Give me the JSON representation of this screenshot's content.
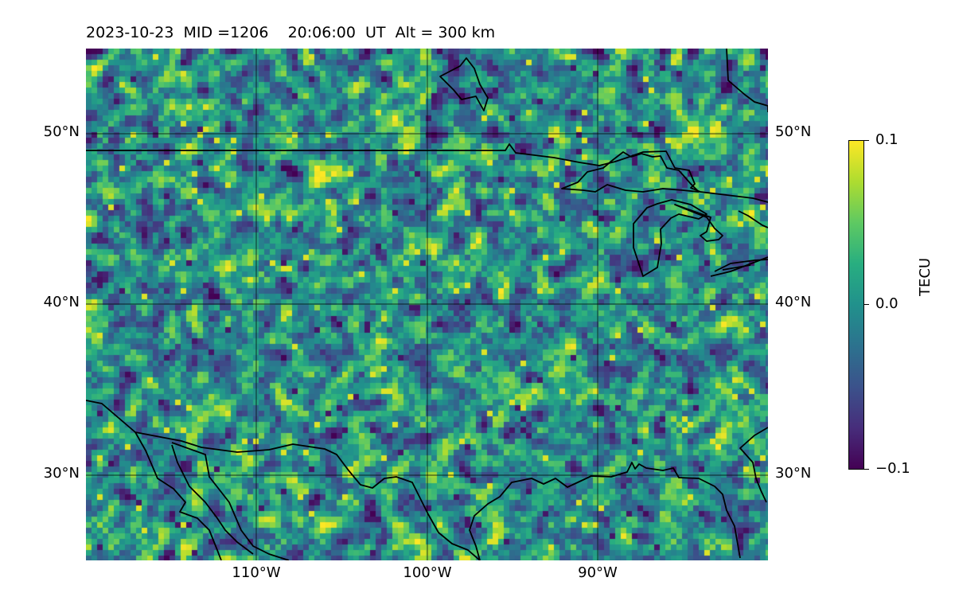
{
  "header": {
    "title": "2023-10-23  MID =1206    20:06:00  UT  Alt = 300 km"
  },
  "map": {
    "lat_ticks": [
      "50°N",
      "40°N",
      "30°N"
    ],
    "lon_ticks": [
      "110°W",
      "100°W",
      "90°W"
    ],
    "lat_range": [
      25,
      55
    ],
    "lon_range": [
      -120,
      -80
    ],
    "grid": true,
    "field": "TEC perturbation",
    "colormap": "viridis"
  },
  "colorbar": {
    "label": "TECU",
    "max_label": "0.1",
    "mid_label": "0.0",
    "min_label": "−0.1",
    "range": [
      -0.1,
      0.1
    ],
    "colors": [
      "#440154",
      "#472d7b",
      "#3b528b",
      "#2c728e",
      "#21918c",
      "#28ae80",
      "#5ec962",
      "#addc30",
      "#fde725"
    ]
  }
}
